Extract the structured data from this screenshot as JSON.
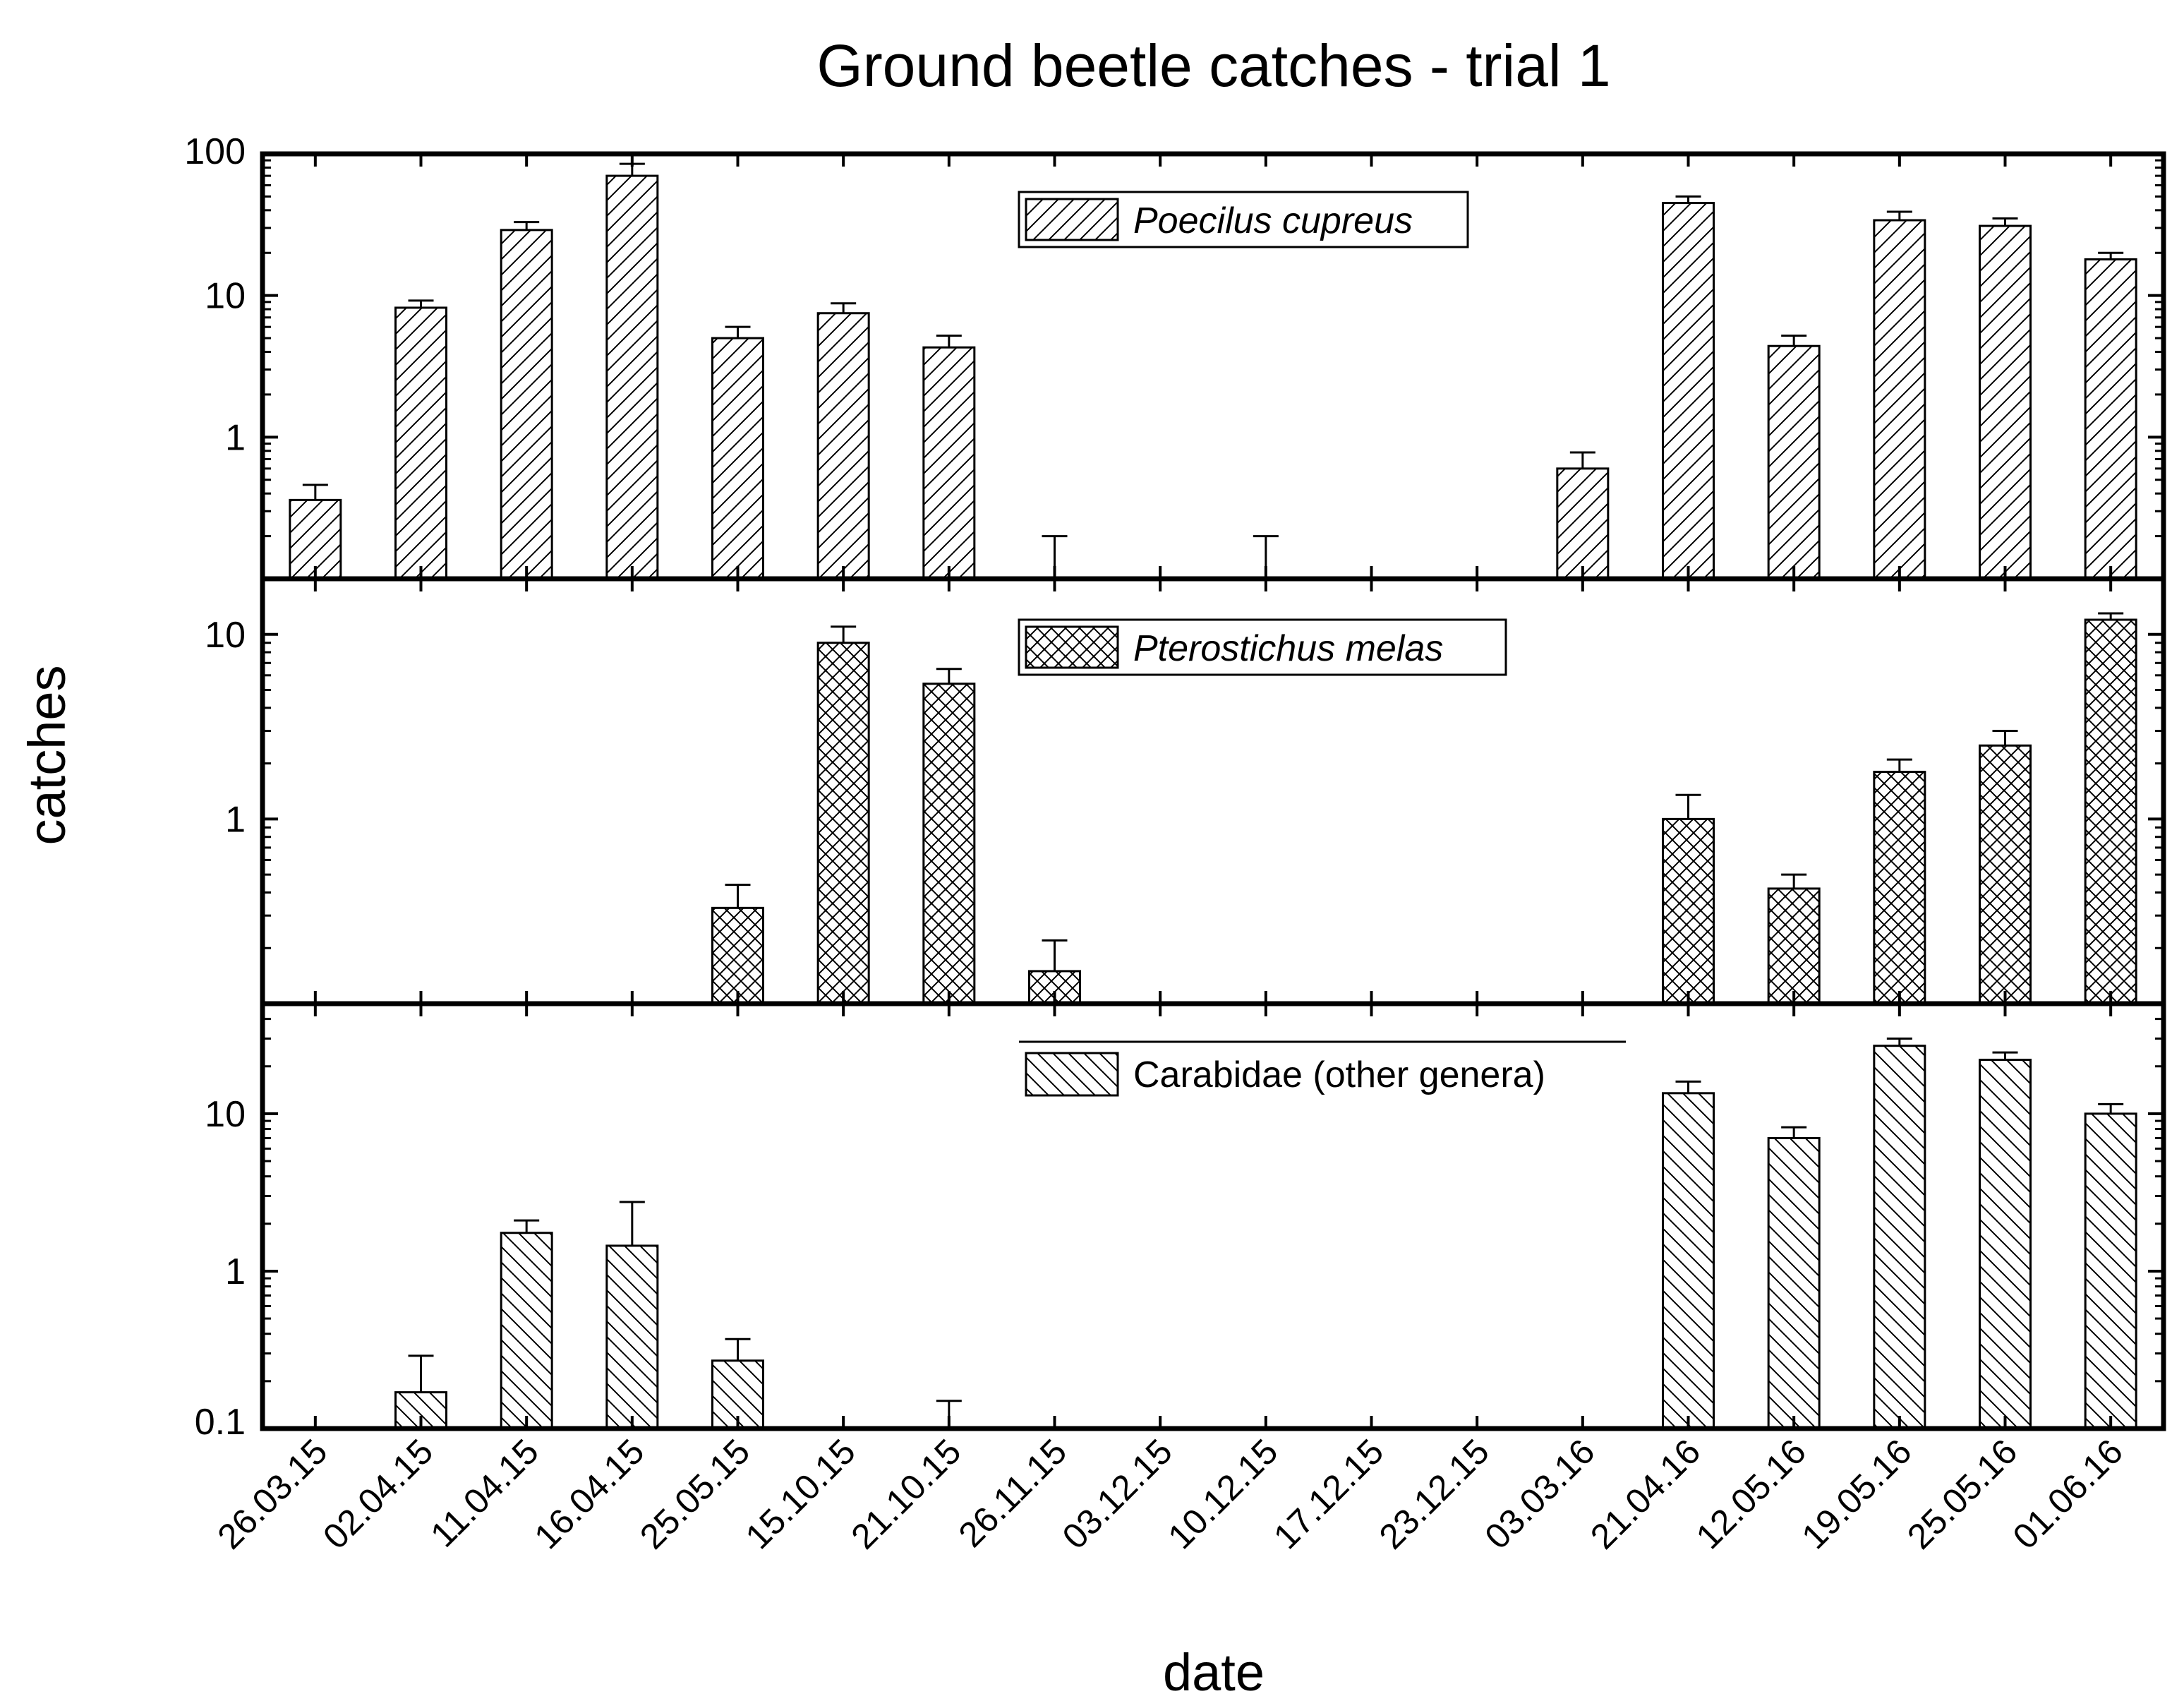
{
  "chart_data": {
    "type": "bar",
    "title": "Ground beetle catches - trial 1",
    "xlabel": "date",
    "ylabel": "catches",
    "yscale": "log",
    "categories": [
      "26.03.15",
      "02.04.15",
      "11.04.15",
      "16.04.15",
      "25.05.15",
      "15.10.15",
      "21.10.15",
      "26.11.15",
      "03.12.15",
      "10.12.15",
      "17.12.15",
      "23.12.15",
      "03.03.16",
      "21.04.16",
      "12.05.16",
      "19.05.16",
      "25.05.16",
      "01.06.16"
    ],
    "panels": [
      {
        "name": "Poecilus cupreus",
        "legend_italic": true,
        "pattern": "diag-right",
        "ylim": [
          0.1,
          100
        ],
        "yticks": [
          {
            "v": 1,
            "label": "1"
          },
          {
            "v": 10,
            "label": "10"
          },
          {
            "v": 100,
            "label": "100"
          }
        ],
        "values": [
          0.36,
          8.2,
          29,
          70,
          5.0,
          7.5,
          4.3,
          null,
          null,
          null,
          null,
          null,
          0.6,
          45,
          4.4,
          34,
          31,
          18
        ],
        "errors": [
          0.46,
          9.2,
          33,
          85,
          6.0,
          8.8,
          5.2,
          0.2,
          null,
          0.2,
          null,
          null,
          0.78,
          50,
          5.2,
          39,
          35,
          20
        ]
      },
      {
        "name": "Pterostichus melas",
        "legend_italic": true,
        "pattern": "crosshatch",
        "ylim": [
          0.1,
          20
        ],
        "yticks": [
          {
            "v": 1,
            "label": "1"
          },
          {
            "v": 10,
            "label": "10"
          }
        ],
        "values": [
          null,
          null,
          null,
          null,
          0.33,
          9.0,
          5.4,
          0.15,
          null,
          null,
          null,
          null,
          null,
          1.0,
          0.42,
          1.8,
          2.5,
          12
        ],
        "errors": [
          null,
          null,
          null,
          null,
          0.44,
          11,
          6.5,
          0.22,
          null,
          null,
          null,
          null,
          null,
          1.35,
          0.5,
          2.1,
          3.0,
          13
        ]
      },
      {
        "name": "Carabidae (other genera)",
        "legend_italic": false,
        "pattern": "diag-left",
        "ylim": [
          0.1,
          50
        ],
        "yticks": [
          {
            "v": 0.1,
            "label": "0.1"
          },
          {
            "v": 1,
            "label": "1"
          },
          {
            "v": 10,
            "label": "10"
          }
        ],
        "values": [
          null,
          0.17,
          1.75,
          1.45,
          0.27,
          null,
          null,
          null,
          null,
          null,
          null,
          null,
          null,
          13.5,
          7.0,
          27,
          22,
          10
        ],
        "errors": [
          null,
          0.29,
          2.1,
          2.75,
          0.37,
          null,
          0.15,
          null,
          null,
          null,
          null,
          null,
          null,
          16,
          8.2,
          30,
          24.5,
          11.5
        ]
      }
    ]
  }
}
